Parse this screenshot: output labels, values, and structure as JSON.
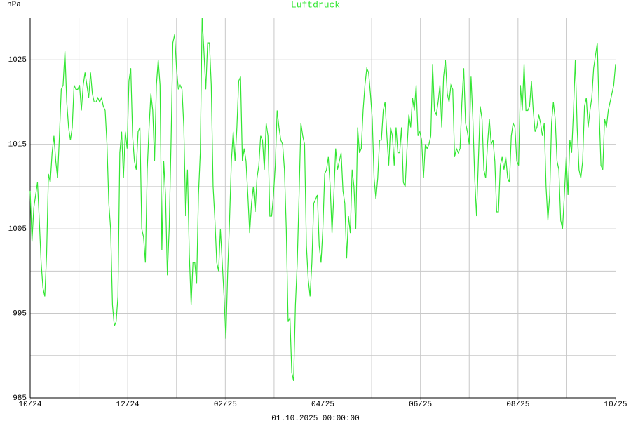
{
  "chart_data": {
    "type": "line",
    "title": "Luftdruck",
    "y_label": "hPa",
    "x_label": "01.10.2025 00:00:00",
    "xlim": [
      0,
      12
    ],
    "xticks": [
      {
        "value": 0,
        "label": "10/24"
      },
      {
        "value": 2,
        "label": "12/24"
      },
      {
        "value": 4,
        "label": "02/25"
      },
      {
        "value": 6,
        "label": "04/25"
      },
      {
        "value": 8,
        "label": "06/25"
      },
      {
        "value": 10,
        "label": "08/25"
      },
      {
        "value": 12,
        "label": "10/25"
      }
    ],
    "xgrid": [
      1,
      2,
      3,
      4,
      5,
      6,
      7,
      8,
      9,
      10,
      11
    ],
    "ylim": [
      985,
      1030
    ],
    "yticks": [
      985,
      995,
      1005,
      1015,
      1025
    ],
    "ygrid": [
      990,
      995,
      1000,
      1005,
      1010,
      1015,
      1020,
      1025
    ],
    "grid": true,
    "series": [
      {
        "name": "Luftdruck",
        "color": "#33e633",
        "values": [
          1009.5,
          1003.5,
          1007.5,
          1009,
          1010.5,
          1006,
          1001,
          998,
          997,
          1002,
          1011.5,
          1010.5,
          1014,
          1016,
          1013,
          1011,
          1016,
          1021.5,
          1022,
          1026,
          1020,
          1017,
          1015.5,
          1017,
          1022,
          1021.5,
          1021.5,
          1022,
          1019,
          1022,
          1023.5,
          1022,
          1020.5,
          1023.5,
          1021,
          1020,
          1020,
          1020.5,
          1020,
          1020.5,
          1019.5,
          1019,
          1015,
          1008,
          1005,
          996,
          993.5,
          994,
          997,
          1014,
          1016.5,
          1011,
          1016.5,
          1014.5,
          1022.5,
          1024,
          1016,
          1013,
          1012,
          1016.5,
          1017,
          1005,
          1004,
          1001,
          1012,
          1017,
          1021,
          1019,
          1013,
          1022,
          1025,
          1022,
          1002.5,
          1013,
          1009,
          999.5,
          1005,
          1015,
          1027,
          1028,
          1024,
          1021.5,
          1022,
          1021.5,
          1017,
          1006.5,
          1012,
          1002,
          996,
          1001,
          1001,
          998.5,
          1009,
          1014,
          1030,
          1026,
          1021.5,
          1027,
          1027,
          1022,
          1010,
          1006,
          1001,
          1000,
          1005,
          1001,
          997,
          992,
          1000,
          1006,
          1013,
          1016.5,
          1013,
          1017,
          1022.5,
          1023,
          1013,
          1014.5,
          1013,
          1009,
          1004.5,
          1008,
          1010,
          1007,
          1011,
          1012.5,
          1016,
          1015.5,
          1012,
          1017.5,
          1016,
          1006.5,
          1006.5,
          1009,
          1012.5,
          1019,
          1017,
          1015.5,
          1015,
          1012,
          1005,
          994,
          994.5,
          988,
          987,
          996,
          1001,
          1009,
          1017.5,
          1016,
          1015,
          1003,
          999,
          997,
          1001,
          1008,
          1008.5,
          1009,
          1003,
          1001,
          1005,
          1011.5,
          1012,
          1013.5,
          1010,
          1004.5,
          1009,
          1014.5,
          1012,
          1013,
          1014,
          1009.5,
          1008,
          1001.5,
          1006.5,
          1004.5,
          1012,
          1010,
          1005,
          1017,
          1014,
          1014.5,
          1019,
          1022,
          1024,
          1023.5,
          1021,
          1018,
          1011,
          1008.5,
          1011,
          1015.5,
          1015.5,
          1019,
          1020,
          1016,
          1012.5,
          1017,
          1016,
          1012.5,
          1017,
          1014,
          1014,
          1017,
          1010.5,
          1010,
          1014.5,
          1018.5,
          1017,
          1020.5,
          1019,
          1022,
          1016,
          1016.5,
          1015.5,
          1011,
          1015,
          1014.5,
          1015,
          1016,
          1024.5,
          1019,
          1018.5,
          1020,
          1022,
          1017,
          1023,
          1025,
          1021,
          1020,
          1022,
          1021.5,
          1013.5,
          1014.5,
          1014,
          1014.5,
          1020,
          1024,
          1017.5,
          1016.5,
          1015,
          1023,
          1018,
          1011,
          1006.5,
          1013,
          1019.5,
          1018,
          1012,
          1011,
          1015,
          1018,
          1015,
          1015.5,
          1013,
          1007,
          1007,
          1012.5,
          1013.5,
          1012,
          1013.5,
          1011,
          1010.5,
          1016,
          1017.5,
          1017,
          1013,
          1012.5,
          1022,
          1019,
          1024.5,
          1019,
          1019,
          1019.5,
          1022.5,
          1019,
          1016.5,
          1017,
          1018.5,
          1017.5,
          1016,
          1017.5,
          1010,
          1006,
          1009,
          1017.5,
          1020,
          1018,
          1013,
          1012,
          1006,
          1005,
          1009,
          1013.5,
          1009,
          1015.5,
          1014,
          1019,
          1025,
          1017,
          1012,
          1011,
          1013,
          1019.5,
          1020.5,
          1017,
          1019,
          1020.5,
          1024,
          1025.5,
          1027,
          1019,
          1012.5,
          1012,
          1018,
          1017,
          1019,
          1020,
          1021,
          1022,
          1024.5
        ]
      }
    ]
  }
}
